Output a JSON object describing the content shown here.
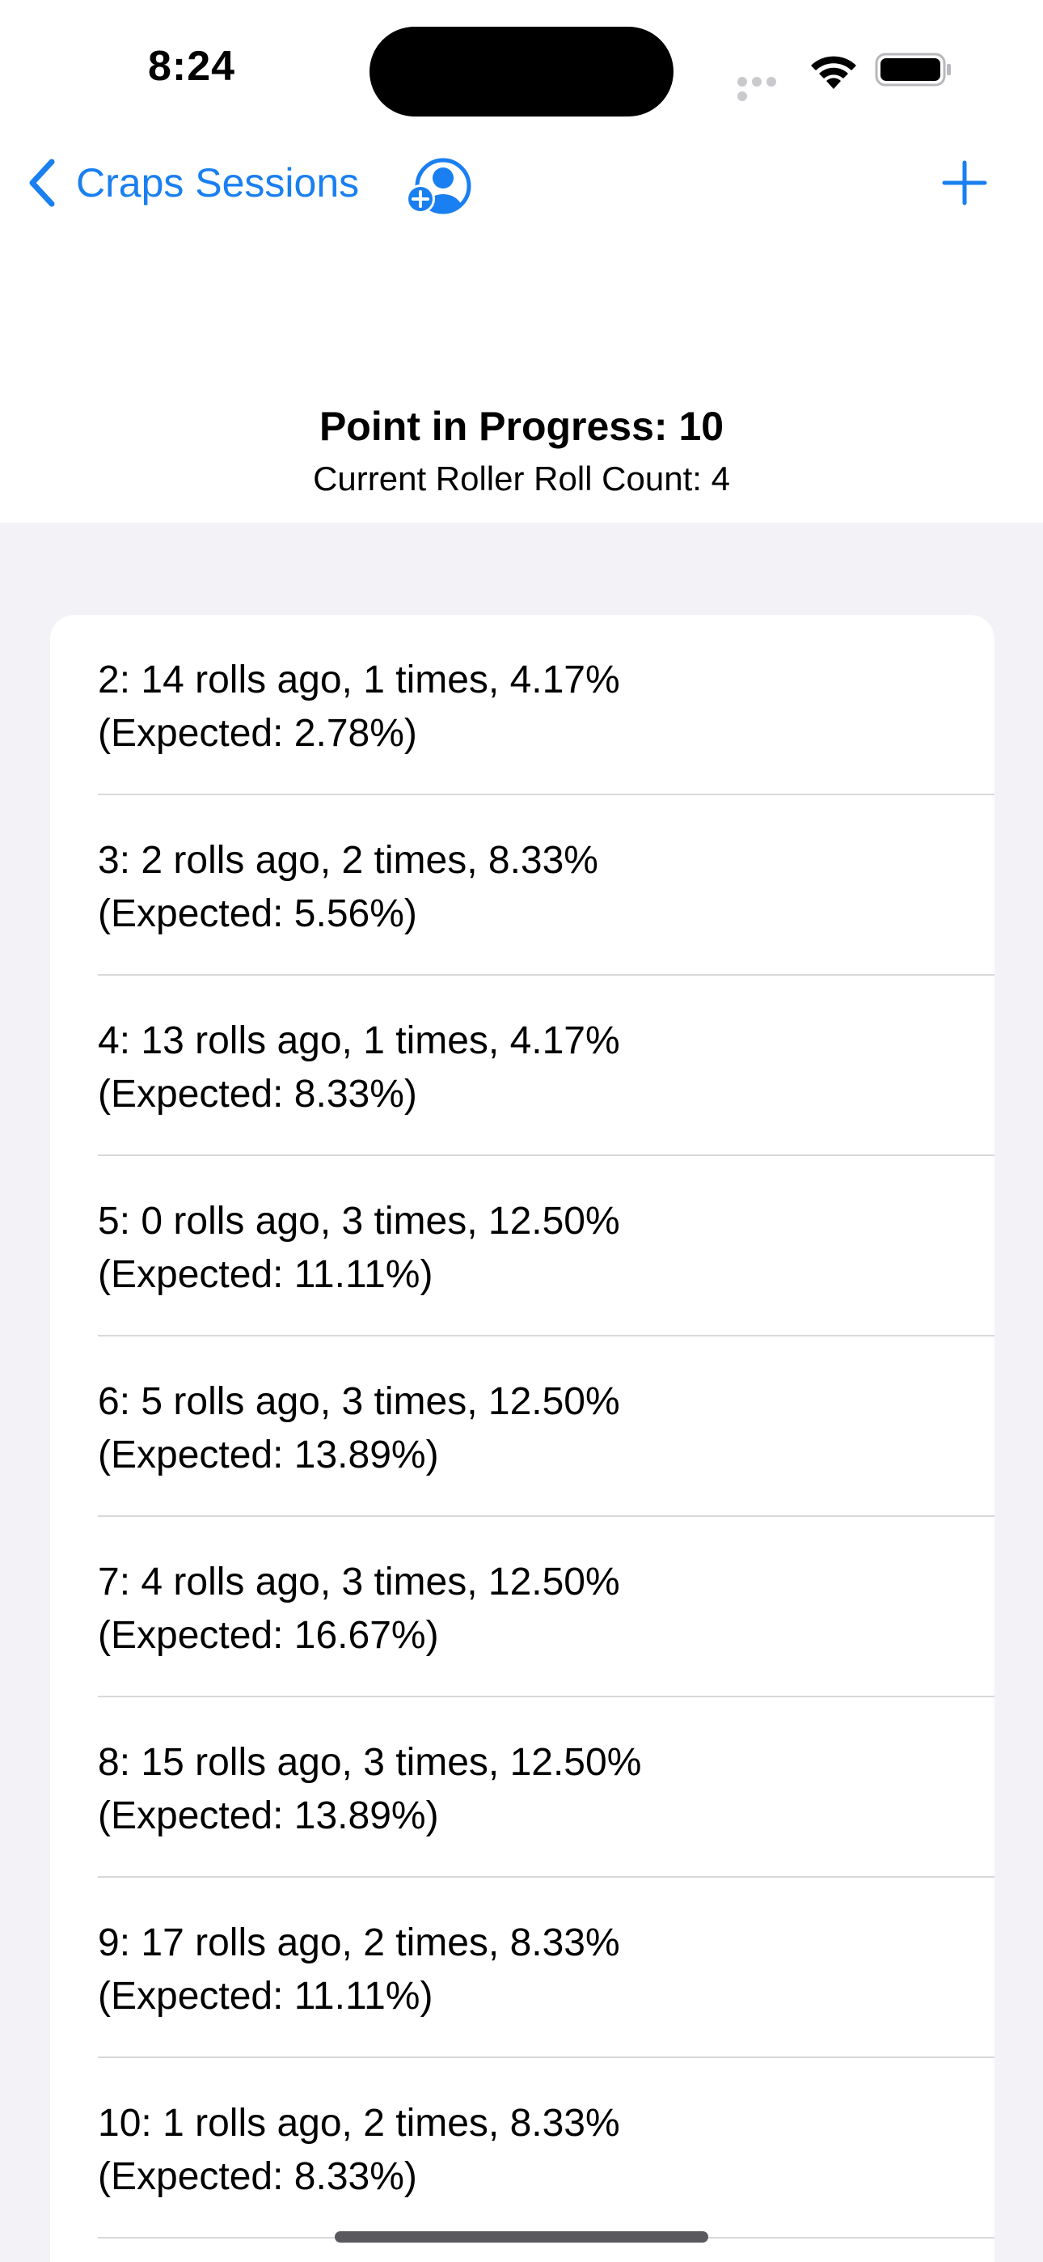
{
  "status_bar": {
    "time": "8:24"
  },
  "nav": {
    "back_label": "Craps Sessions",
    "icons": {
      "back": "chevron-left-icon",
      "profile": "person-add-icon",
      "add": "plus-icon"
    },
    "accent_color": "#1a7ff0"
  },
  "header": {
    "point": "Point in Progress: 10",
    "roll_count": "Current Roller Roll Count: 4"
  },
  "stats": [
    {
      "line1": "2: 14 rolls ago, 1 times, 4.17%",
      "line2": "(Expected: 2.78%)"
    },
    {
      "line1": "3: 2 rolls ago, 2 times, 8.33%",
      "line2": "(Expected: 5.56%)"
    },
    {
      "line1": "4: 13 rolls ago, 1 times, 4.17%",
      "line2": "(Expected: 8.33%)"
    },
    {
      "line1": "5: 0 rolls ago, 3 times, 12.50%",
      "line2": "(Expected: 11.11%)"
    },
    {
      "line1": "6: 5 rolls ago, 3 times, 12.50%",
      "line2": "(Expected: 13.89%)"
    },
    {
      "line1": "7: 4 rolls ago, 3 times, 12.50%",
      "line2": "(Expected: 16.67%)"
    },
    {
      "line1": "8: 15 rolls ago, 3 times, 12.50%",
      "line2": "(Expected: 13.89%)"
    },
    {
      "line1": "9: 17 rolls ago, 2 times, 8.33%",
      "line2": "(Expected: 11.11%)"
    },
    {
      "line1": "10: 1 rolls ago, 2 times, 8.33%",
      "line2": "(Expected: 8.33%)"
    }
  ]
}
